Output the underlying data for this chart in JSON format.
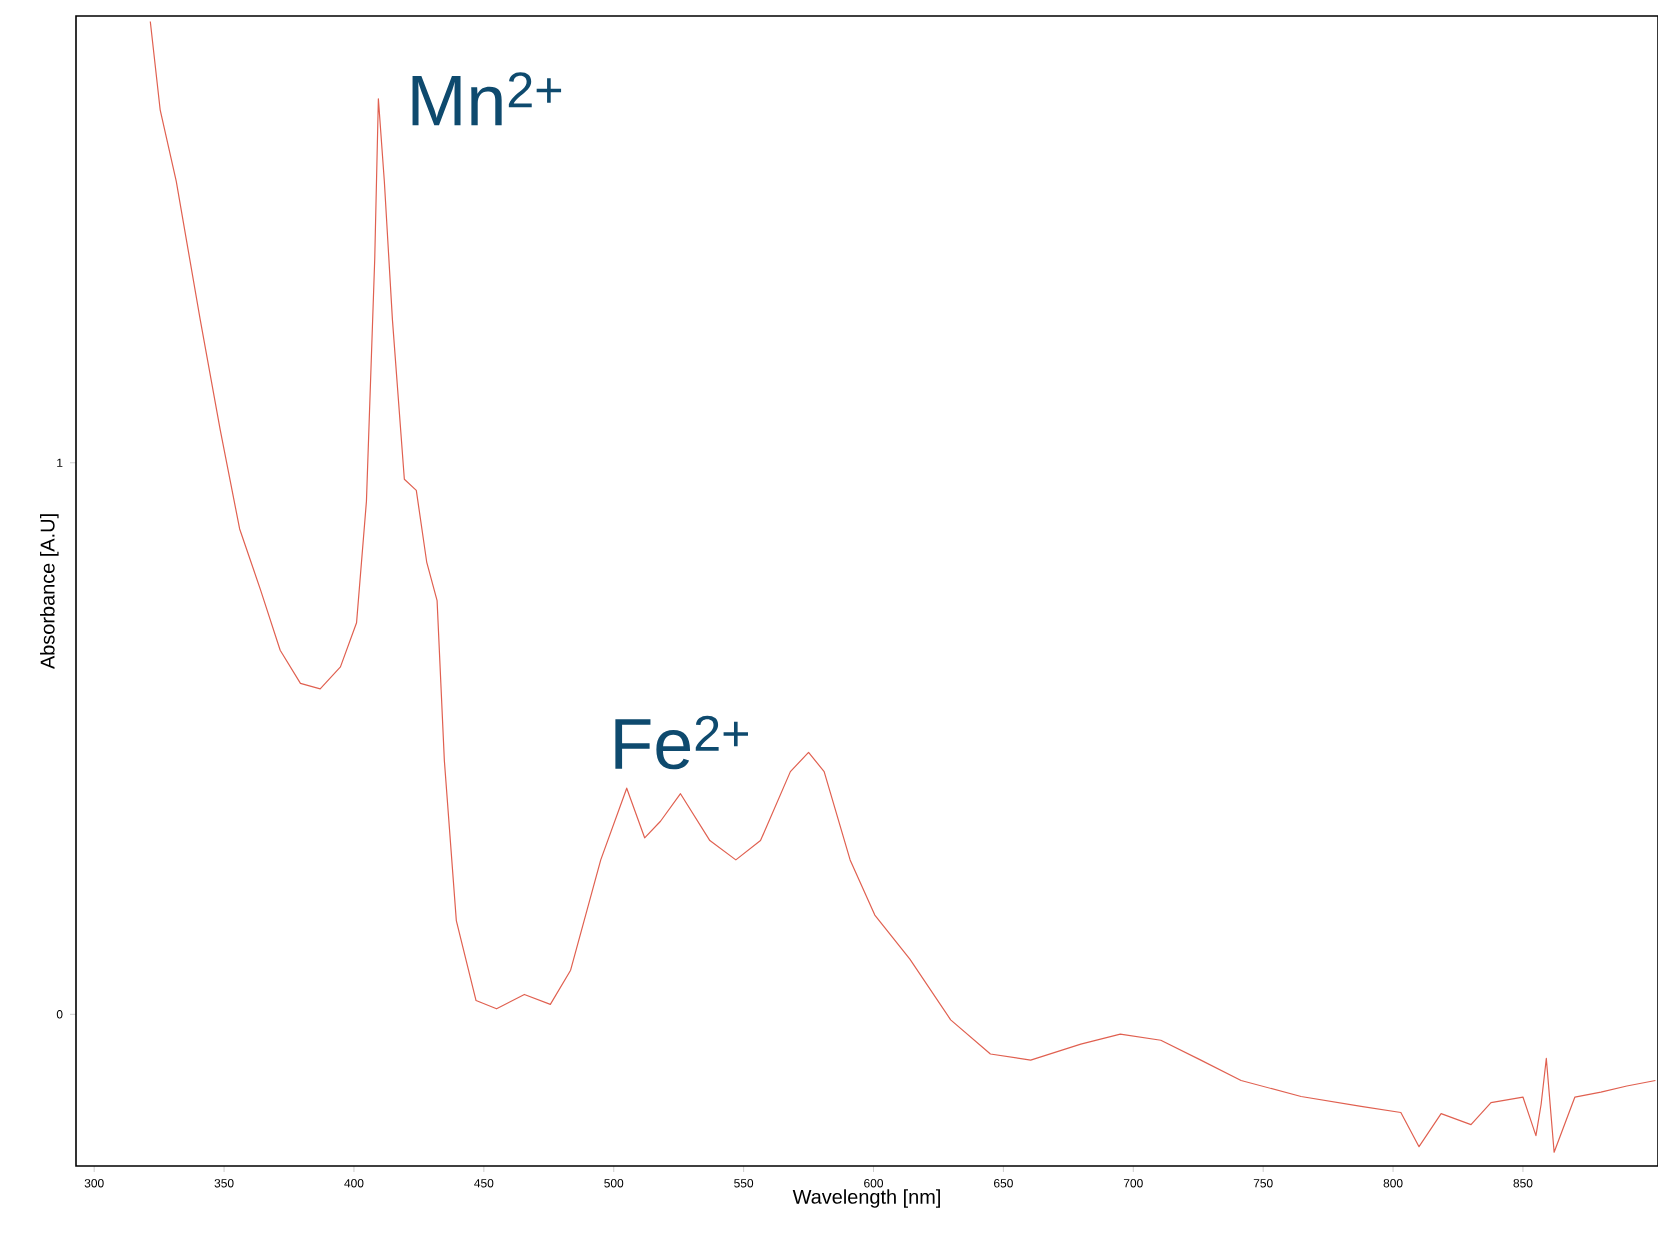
{
  "chart_data": {
    "type": "line",
    "xlabel": "Wavelength [nm]",
    "ylabel": "Absorbance [A.U]",
    "xlim": [
      293,
      902
    ],
    "ylim": [
      -0.275,
      1.81
    ],
    "xticks": [
      300,
      350,
      400,
      450,
      500,
      550,
      600,
      650,
      700,
      750,
      800,
      850
    ],
    "yticks": [
      0,
      1
    ],
    "grid": false,
    "marker": "none",
    "line_style": "solid",
    "series": [
      {
        "color": "#e06050",
        "x": [
          321.6,
          325.4,
          331.6,
          340.8,
          348.5,
          356,
          364,
          371.6,
          379.4,
          387,
          394.8,
          401,
          404.8,
          408,
          409.4,
          411.7,
          414.8,
          419.4,
          424,
          428,
          432,
          434.8,
          439.4,
          447,
          454.9,
          465.6,
          475.6,
          483.4,
          495,
          505,
          511.9,
          518,
          525.7,
          537,
          547,
          556.5,
          568,
          575,
          581,
          591,
          600.5,
          614,
          629.7,
          645,
          660.5,
          679.8,
          695,
          710.6,
          726,
          741.5,
          764.6,
          787.7,
          803,
          810,
          818.5,
          830,
          837.7,
          850,
          855,
          857,
          859,
          862,
          870,
          880,
          890,
          901
        ],
        "values": [
          1.8,
          1.64,
          1.51,
          1.26,
          1.06,
          0.88,
          0.77,
          0.66,
          0.6,
          0.59,
          0.63,
          0.71,
          0.93,
          1.37,
          1.66,
          1.51,
          1.26,
          0.97,
          0.95,
          0.82,
          0.75,
          0.46,
          0.17,
          0.025,
          0.01,
          0.036,
          0.018,
          0.08,
          0.28,
          0.41,
          0.32,
          0.35,
          0.4,
          0.315,
          0.28,
          0.315,
          0.44,
          0.475,
          0.44,
          0.28,
          0.18,
          0.1,
          -0.01,
          -0.072,
          -0.083,
          -0.054,
          -0.036,
          -0.047,
          -0.083,
          -0.12,
          -0.149,
          -0.167,
          -0.178,
          -0.24,
          -0.18,
          -0.2,
          -0.16,
          -0.15,
          -0.22,
          -0.163,
          -0.08,
          -0.25,
          -0.15,
          -0.141,
          -0.13,
          -0.12
        ]
      }
    ],
    "annotations": [
      {
        "text": "Mn$^{2+}$",
        "x": 409.4,
        "y": 1.66
      },
      {
        "text": "Fe$^{2+}$",
        "x": 525.7,
        "y": 0.4
      }
    ]
  }
}
